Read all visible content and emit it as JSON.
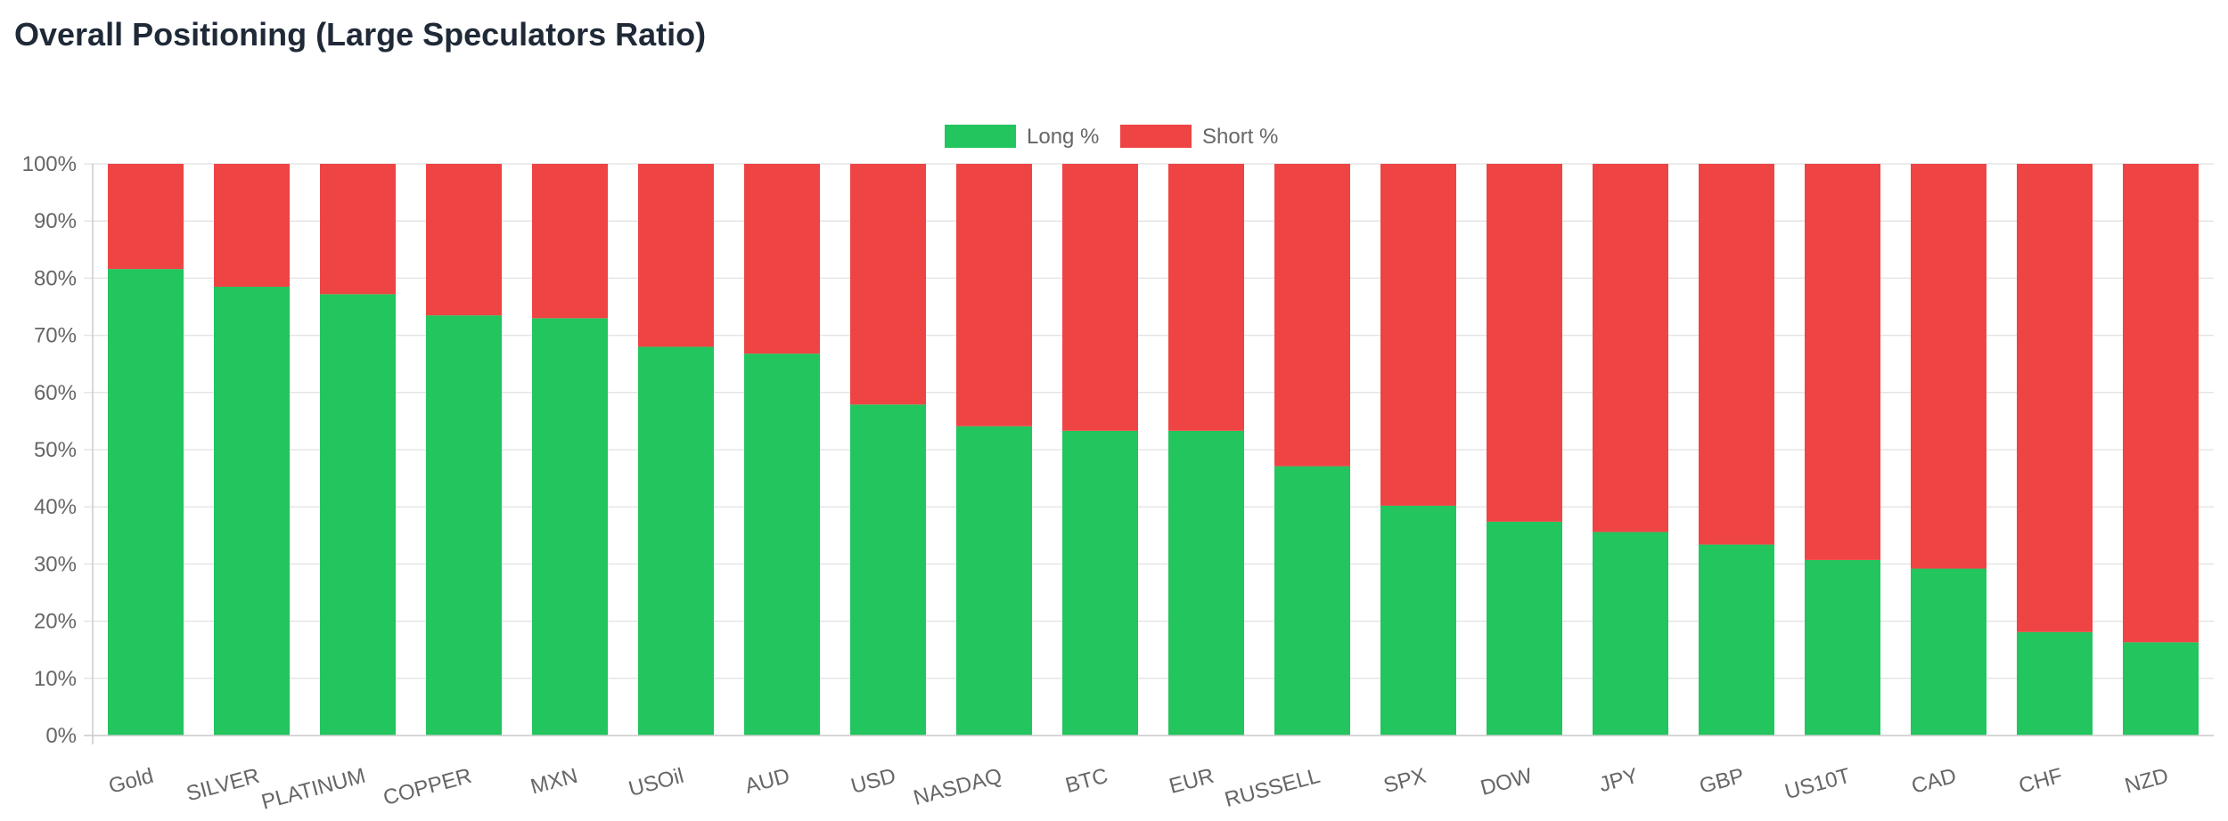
{
  "page": {
    "title": "Overall Positioning (Large Speculators Ratio)"
  },
  "colors": {
    "long": "#22c55e",
    "short": "#ef4444",
    "grid": "#e5e5e5",
    "axis": "#cccccc",
    "tick_text": "#666666"
  },
  "chart_data": {
    "type": "bar",
    "stacked": true,
    "categories": [
      "Gold",
      "SILVER",
      "PLATINUM",
      "COPPER",
      "MXN",
      "USOil",
      "AUD",
      "USD",
      "NASDAQ",
      "BTC",
      "EUR",
      "RUSSELL",
      "SPX",
      "DOW",
      "JPY",
      "GBP",
      "US10T",
      "CAD",
      "CHF",
      "NZD"
    ],
    "series": [
      {
        "name": "Long %",
        "color": "#22c55e",
        "values": [
          81.6,
          78.5,
          77.2,
          73.5,
          73.0,
          68.0,
          66.8,
          57.9,
          54.1,
          53.3,
          53.3,
          47.1,
          40.2,
          37.4,
          35.6,
          33.4,
          30.7,
          29.2,
          18.1,
          16.3
        ]
      },
      {
        "name": "Short %",
        "color": "#ef4444",
        "values": [
          18.4,
          21.5,
          22.8,
          26.5,
          27.0,
          32.0,
          33.2,
          42.1,
          45.9,
          46.7,
          46.7,
          52.9,
          59.8,
          62.6,
          64.4,
          66.6,
          69.3,
          70.8,
          81.9,
          83.7
        ]
      }
    ],
    "y_ticks": [
      "0%",
      "10%",
      "20%",
      "30%",
      "40%",
      "50%",
      "60%",
      "70%",
      "80%",
      "90%",
      "100%"
    ],
    "ylim": [
      0,
      100
    ],
    "xlabel": "",
    "ylabel": "",
    "grid": true,
    "legend_position": "top-center"
  }
}
